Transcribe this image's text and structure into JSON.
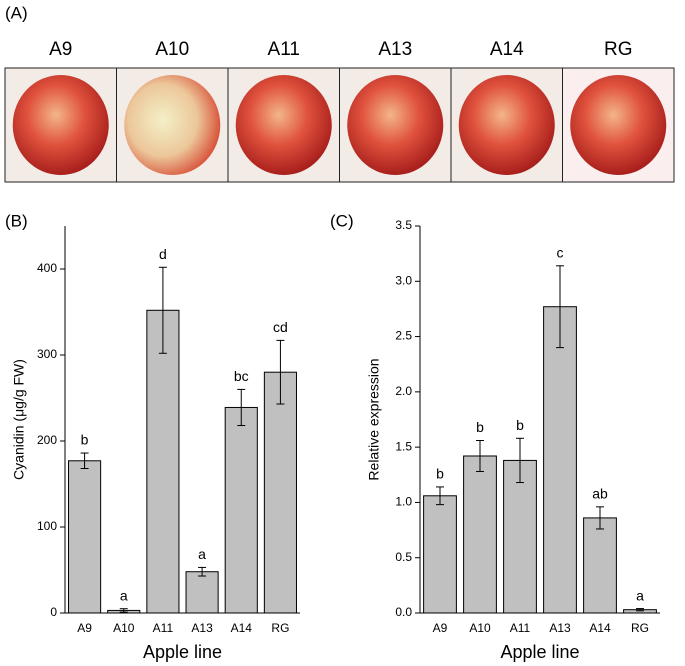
{
  "panel_a": {
    "label": "(A)",
    "photos": [
      "A9",
      "A10",
      "A11",
      "A13",
      "A14",
      "RG"
    ]
  },
  "chart_data": [
    {
      "type": "bar",
      "panel_label": "(B)",
      "ylabel": "Cyanidin (μg/g FW)",
      "xlabel": "Apple line",
      "categories": [
        "A9",
        "A10",
        "A11",
        "A13",
        "A14",
        "RG"
      ],
      "values": [
        177,
        3,
        352,
        48,
        239,
        280
      ],
      "errors": [
        9,
        2,
        50,
        5,
        21,
        37
      ],
      "annotations": [
        "b",
        "a",
        "d",
        "a",
        "bc",
        "cd"
      ],
      "color": "#c0c0c0",
      "ylim": [
        0,
        450
      ],
      "yticks": [
        0,
        100,
        200,
        300,
        400
      ]
    },
    {
      "type": "bar",
      "panel_label": "(C)",
      "ylabel": "Relative expression",
      "xlabel": "Apple line",
      "categories": [
        "A9",
        "A10",
        "A11",
        "A13",
        "A14",
        "RG"
      ],
      "values": [
        1.06,
        1.42,
        1.38,
        2.77,
        0.86,
        0.03
      ],
      "errors": [
        0.08,
        0.14,
        0.2,
        0.37,
        0.1,
        0.01
      ],
      "annotations": [
        "b",
        "b",
        "b",
        "c",
        "ab",
        "a"
      ],
      "color": "#c0c0c0",
      "ylim": [
        0,
        3.5
      ],
      "yticks": [
        {
          "value": 0,
          "label": "0.0"
        },
        0.5,
        {
          "value": 1,
          "label": "1.0"
        },
        1.5,
        {
          "value": 2,
          "label": "2.0"
        },
        2.5,
        {
          "value": 3,
          "label": "3.0"
        },
        3.5
      ]
    }
  ]
}
